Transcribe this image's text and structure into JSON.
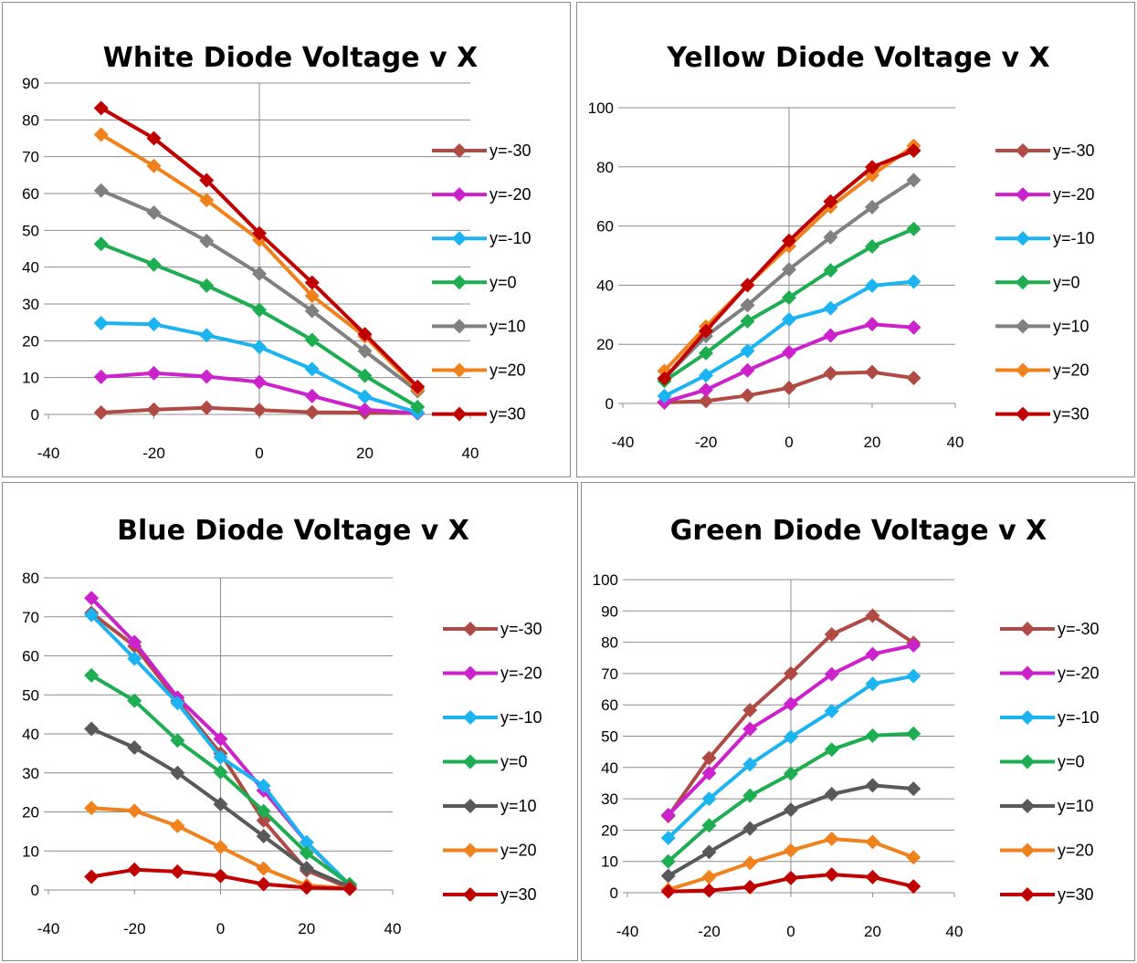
{
  "chart_data": [
    {
      "type": "line",
      "title": "White Diode Voltage v X",
      "xlabel": "",
      "ylabel": "",
      "xlim": [
        -40,
        40
      ],
      "ylim": [
        0,
        90
      ],
      "xticks": [
        -40,
        -20,
        0,
        20,
        40
      ],
      "yticks": [
        0,
        10,
        20,
        30,
        40,
        50,
        60,
        70,
        80,
        90
      ],
      "grid": "horizontal",
      "legend": "right",
      "x": [
        -30,
        -20,
        -10,
        0,
        10,
        20,
        30
      ],
      "series": [
        {
          "name": "y=-30",
          "color": "#B04A45",
          "values": [
            0.5,
            1.3,
            1.8,
            1.2,
            0.6,
            0.5,
            0.3
          ]
        },
        {
          "name": "y=-20",
          "color": "#CC22CC",
          "values": [
            10.2,
            11.2,
            10.3,
            8.8,
            5.0,
            1.3,
            0.3
          ]
        },
        {
          "name": "y=-10",
          "color": "#1CB4F0",
          "values": [
            24.8,
            24.5,
            21.5,
            18.3,
            12.3,
            4.8,
            0.5
          ]
        },
        {
          "name": "y=0",
          "color": "#1EAD50",
          "values": [
            46.3,
            40.7,
            35.0,
            28.4,
            20.2,
            10.5,
            2.0
          ]
        },
        {
          "name": "y=10",
          "color": "#808080",
          "values": [
            60.8,
            54.8,
            47.1,
            38.2,
            28.1,
            17.2,
            6.3
          ]
        },
        {
          "name": "y=20",
          "color": "#F0821E",
          "values": [
            76.0,
            67.5,
            58.2,
            47.4,
            32.2,
            21.2,
            6.8
          ]
        },
        {
          "name": "y=30",
          "color": "#C00000",
          "values": [
            83.2,
            75.0,
            63.6,
            49.2,
            35.8,
            21.8,
            7.5
          ]
        }
      ]
    },
    {
      "type": "line",
      "title": "Yellow Diode Voltage v X",
      "xlabel": "",
      "ylabel": "",
      "xlim": [
        -40,
        40
      ],
      "ylim": [
        0,
        100
      ],
      "xticks": [
        -40,
        -20,
        0,
        20,
        40
      ],
      "yticks": [
        0,
        20,
        40,
        60,
        80,
        100
      ],
      "grid": "horizontal",
      "legend": "right",
      "x": [
        -30,
        -20,
        -10,
        0,
        10,
        20,
        30
      ],
      "series": [
        {
          "name": "y=-30",
          "color": "#B04A45",
          "values": [
            0.3,
            0.8,
            2.7,
            5.3,
            10.2,
            10.6,
            8.6
          ]
        },
        {
          "name": "y=-20",
          "color": "#CC22CC",
          "values": [
            0.5,
            4.6,
            11.2,
            17.3,
            23.0,
            26.8,
            25.7
          ]
        },
        {
          "name": "y=-10",
          "color": "#1CB4F0",
          "values": [
            2.5,
            9.5,
            17.8,
            28.4,
            32.2,
            39.8,
            41.2
          ]
        },
        {
          "name": "y=0",
          "color": "#1EAD50",
          "values": [
            7.6,
            17.0,
            27.8,
            35.8,
            45.0,
            53.1,
            59.0
          ]
        },
        {
          "name": "y=10",
          "color": "#808080",
          "values": [
            8.5,
            22.8,
            33.2,
            45.3,
            56.2,
            66.4,
            75.5
          ]
        },
        {
          "name": "y=20",
          "color": "#F0821E",
          "values": [
            11.0,
            26.0,
            40.0,
            53.2,
            66.5,
            77.2,
            87.1
          ]
        },
        {
          "name": "y=30",
          "color": "#C00000",
          "values": [
            8.4,
            24.5,
            40.0,
            55.0,
            68.3,
            79.9,
            85.5
          ]
        }
      ]
    },
    {
      "type": "line",
      "title": "Blue Diode Voltage v X",
      "xlabel": "",
      "ylabel": "",
      "xlim": [
        -40,
        40
      ],
      "ylim": [
        0,
        80
      ],
      "xticks": [
        -40,
        -20,
        0,
        20,
        40
      ],
      "yticks": [
        0,
        10,
        20,
        30,
        40,
        50,
        60,
        70,
        80
      ],
      "grid": "horizontal",
      "legend": "right",
      "x": [
        -30,
        -20,
        -10,
        0,
        10,
        20,
        30
      ],
      "series": [
        {
          "name": "y=-30",
          "color": "#B04A45",
          "values": [
            71.0,
            62.5,
            48.5,
            35.0,
            17.8,
            5.0,
            0.5
          ]
        },
        {
          "name": "y=-20",
          "color": "#CC22CC",
          "values": [
            74.8,
            63.5,
            49.3,
            38.7,
            25.5,
            12.2,
            1.0
          ]
        },
        {
          "name": "y=-10",
          "color": "#1CB4F0",
          "values": [
            70.5,
            59.3,
            47.9,
            34.0,
            26.7,
            12.2,
            1.3
          ]
        },
        {
          "name": "y=0",
          "color": "#1EAD50",
          "values": [
            55.0,
            48.5,
            38.3,
            30.2,
            20.2,
            9.5,
            1.5
          ]
        },
        {
          "name": "y=10",
          "color": "#595959",
          "values": [
            41.3,
            36.5,
            30.0,
            22.0,
            13.8,
            5.6,
            0.8
          ]
        },
        {
          "name": "y=20",
          "color": "#F0821E",
          "values": [
            21.0,
            20.3,
            16.4,
            11.0,
            5.5,
            1.2,
            0.4
          ]
        },
        {
          "name": "y=30",
          "color": "#C00000",
          "values": [
            3.4,
            5.2,
            4.7,
            3.6,
            1.5,
            0.6,
            0.3
          ]
        }
      ]
    },
    {
      "type": "line",
      "title": "Green Diode Voltage v X",
      "xlabel": "",
      "ylabel": "",
      "xlim": [
        -40,
        40
      ],
      "ylim": [
        0,
        100
      ],
      "xticks": [
        -40,
        -20,
        0,
        20,
        40
      ],
      "yticks": [
        0,
        10,
        20,
        30,
        40,
        50,
        60,
        70,
        80,
        90,
        100
      ],
      "grid": "horizontal",
      "legend": "right",
      "x": [
        -30,
        -20,
        -10,
        0,
        10,
        20,
        30
      ],
      "series": [
        {
          "name": "y=-30",
          "color": "#B04A45",
          "values": [
            24.5,
            43.0,
            58.3,
            70.0,
            82.5,
            88.5,
            79.8
          ]
        },
        {
          "name": "y=-20",
          "color": "#CC22CC",
          "values": [
            24.8,
            38.2,
            52.3,
            60.3,
            69.8,
            76.2,
            79.0
          ]
        },
        {
          "name": "y=-10",
          "color": "#1CB4F0",
          "values": [
            17.5,
            30.0,
            41.0,
            49.7,
            58.0,
            66.7,
            69.2
          ]
        },
        {
          "name": "y=0",
          "color": "#1EAD50",
          "values": [
            10.0,
            21.5,
            31.0,
            38.0,
            45.7,
            50.2,
            50.8
          ]
        },
        {
          "name": "y=10",
          "color": "#595959",
          "values": [
            5.4,
            13.0,
            20.5,
            26.5,
            31.5,
            34.3,
            33.2
          ]
        },
        {
          "name": "y=20",
          "color": "#F0821E",
          "values": [
            1.0,
            5.0,
            9.5,
            13.5,
            17.2,
            16.2,
            11.3
          ]
        },
        {
          "name": "y=30",
          "color": "#C00000",
          "values": [
            0.4,
            0.7,
            1.8,
            4.7,
            5.8,
            5.0,
            2.0
          ]
        }
      ]
    }
  ]
}
